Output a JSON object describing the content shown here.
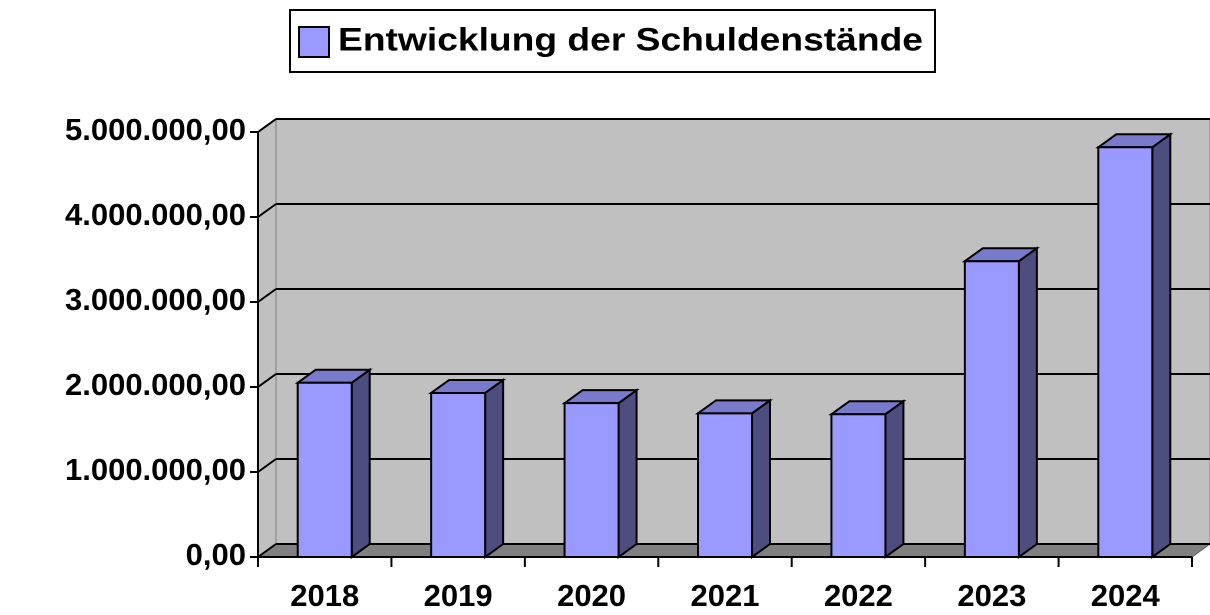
{
  "chart_data": {
    "type": "bar",
    "categories": [
      "2018",
      "2019",
      "2020",
      "2021",
      "2022",
      "2023",
      "2024"
    ],
    "series": [
      {
        "name": "Entwicklung der Schuldenstände",
        "color": "#9999ff",
        "values": [
          2050000,
          1930000,
          1810000,
          1690000,
          1680000,
          3480000,
          4820000
        ]
      }
    ],
    "ylim": [
      0,
      5000000
    ],
    "yticks": [
      {
        "value": 0,
        "label": "0,00"
      },
      {
        "value": 1000000,
        "label": "1.000.000,00"
      },
      {
        "value": 2000000,
        "label": "2.000.000,00"
      },
      {
        "value": 3000000,
        "label": "3.000.000,00"
      },
      {
        "value": 4000000,
        "label": "4.000.000,00"
      },
      {
        "value": 5000000,
        "label": "5.000.000,00"
      }
    ],
    "grid": true,
    "legend": "top"
  }
}
